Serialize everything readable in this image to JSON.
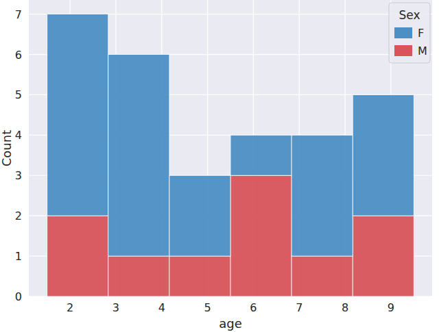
{
  "chart_data": {
    "type": "histogram",
    "x_label": "age",
    "y_label": "Count",
    "legend_title": "Sex",
    "bins": [
      1.5,
      2.833,
      4.167,
      5.5,
      6.833,
      8.167,
      9.5
    ],
    "series": [
      {
        "name": "F",
        "color": "#4c8fc4",
        "values": [
          5,
          5,
          2,
          1,
          3,
          3
        ]
      },
      {
        "name": "M",
        "color": "#d8545a",
        "values": [
          2,
          1,
          1,
          3,
          1,
          2
        ]
      }
    ],
    "stacked": true,
    "xlim": [
      1.1,
      9.9
    ],
    "xticks": [
      2,
      3,
      4,
      5,
      6,
      7,
      8,
      9
    ],
    "ylim": [
      0,
      7.35
    ],
    "yticks": [
      0,
      1,
      2,
      3,
      4,
      5,
      6,
      7
    ],
    "grid": true,
    "legend": "upper right"
  }
}
